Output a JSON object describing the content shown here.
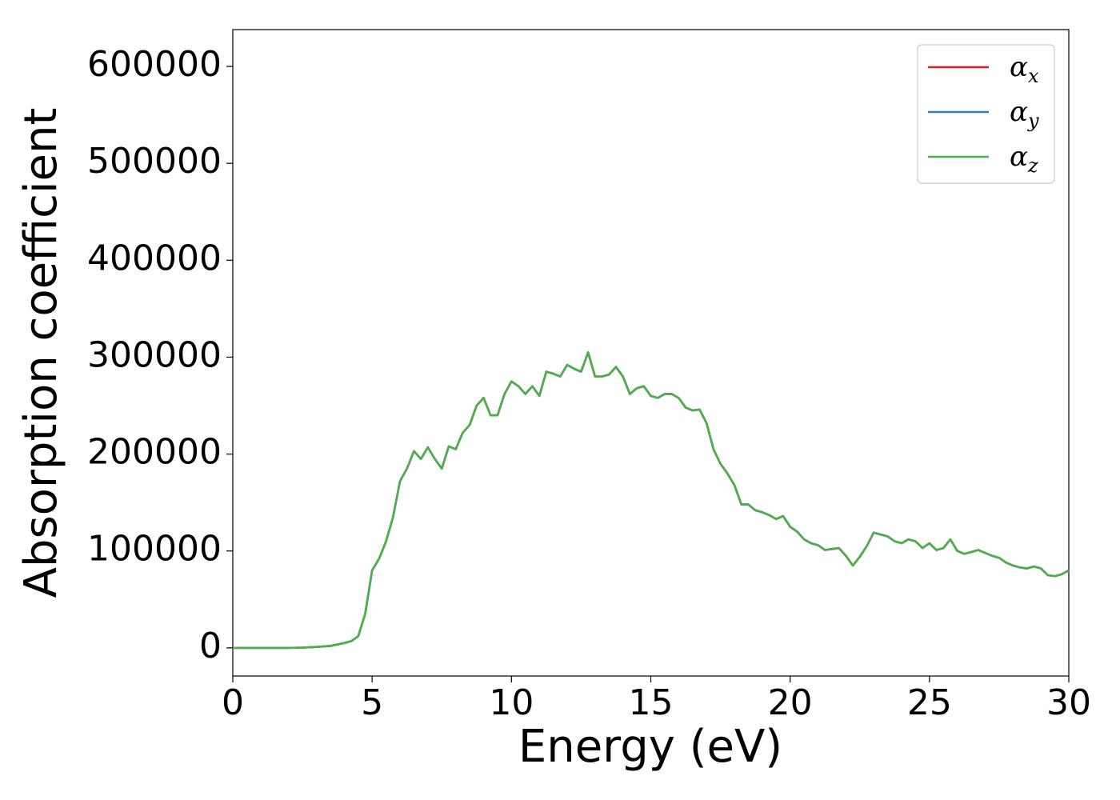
{
  "chart_data": {
    "type": "line",
    "xlabel": "Energy (eV)",
    "ylabel": "Absorption coefficient",
    "x": [
      0,
      0.5,
      1,
      1.5,
      2,
      2.5,
      3,
      3.5,
      4,
      4.25,
      4.5,
      4.75,
      5,
      5.25,
      5.5,
      5.75,
      6,
      6.25,
      6.5,
      6.75,
      7,
      7.25,
      7.5,
      7.75,
      8,
      8.25,
      8.5,
      8.75,
      9,
      9.25,
      9.5,
      9.75,
      10,
      10.25,
      10.5,
      10.75,
      11,
      11.25,
      11.5,
      11.75,
      12,
      12.25,
      12.5,
      12.75,
      13,
      13.25,
      13.5,
      13.75,
      14,
      14.25,
      14.5,
      14.75,
      15,
      15.25,
      15.5,
      15.75,
      16,
      16.25,
      16.5,
      16.75,
      17,
      17.25,
      17.5,
      17.75,
      18,
      18.25,
      18.5,
      18.75,
      19,
      19.25,
      19.5,
      19.75,
      20,
      20.25,
      20.5,
      20.75,
      21,
      21.25,
      21.5,
      21.75,
      22,
      22.25,
      22.5,
      22.75,
      23,
      23.25,
      23.5,
      23.75,
      24,
      24.25,
      24.5,
      24.75,
      25,
      25.25,
      25.5,
      25.75,
      26,
      26.25,
      26.5,
      26.75,
      27,
      27.25,
      27.5,
      27.75,
      28,
      28.25,
      28.5,
      28.75,
      29,
      29.25,
      29.5,
      29.75,
      30
    ],
    "series": [
      {
        "name": "αx",
        "color": "#e41a1c",
        "values": [
          0,
          0,
          0,
          0,
          0,
          300,
          1000,
          2000,
          5000,
          7000,
          12000,
          35000,
          80000,
          92000,
          110000,
          135000,
          172000,
          185000,
          203000,
          195000,
          207000,
          195000,
          185000,
          208000,
          205000,
          222000,
          230000,
          250000,
          258000,
          240000,
          240000,
          262000,
          275000,
          270000,
          262000,
          270000,
          260000,
          285000,
          283000,
          280000,
          292000,
          288000,
          285000,
          305000,
          280000,
          280000,
          282000,
          290000,
          280000,
          262000,
          268000,
          270000,
          260000,
          258000,
          262000,
          262000,
          258000,
          248000,
          245000,
          246000,
          232000,
          205000,
          190000,
          180000,
          168000,
          148000,
          148000,
          142000,
          140000,
          137000,
          133000,
          136000,
          125000,
          120000,
          112000,
          108000,
          106000,
          101000,
          102000,
          103000,
          95000,
          85000,
          94000,
          105000,
          119000,
          117000,
          115000,
          110000,
          108000,
          112000,
          110000,
          103000,
          108000,
          101000,
          103000,
          112000,
          100000,
          97000,
          99000,
          101000,
          98000,
          95000,
          93000,
          88000,
          85000,
          83000,
          82000,
          84000,
          82000,
          75000,
          74000,
          76000,
          80000
        ]
      },
      {
        "name": "αy",
        "color": "#377eb8",
        "values": [
          0,
          0,
          0,
          0,
          0,
          300,
          1000,
          2000,
          5000,
          7000,
          12000,
          35000,
          80000,
          92000,
          110000,
          135000,
          172000,
          185000,
          203000,
          195000,
          207000,
          195000,
          185000,
          208000,
          205000,
          222000,
          230000,
          250000,
          258000,
          240000,
          240000,
          262000,
          275000,
          270000,
          262000,
          270000,
          260000,
          285000,
          283000,
          280000,
          292000,
          288000,
          285000,
          305000,
          280000,
          280000,
          282000,
          290000,
          280000,
          262000,
          268000,
          270000,
          260000,
          258000,
          262000,
          262000,
          258000,
          248000,
          245000,
          246000,
          232000,
          205000,
          190000,
          180000,
          168000,
          148000,
          148000,
          142000,
          140000,
          137000,
          133000,
          136000,
          125000,
          120000,
          112000,
          108000,
          106000,
          101000,
          102000,
          103000,
          95000,
          85000,
          94000,
          105000,
          119000,
          117000,
          115000,
          110000,
          108000,
          112000,
          110000,
          103000,
          108000,
          101000,
          103000,
          112000,
          100000,
          97000,
          99000,
          101000,
          98000,
          95000,
          93000,
          88000,
          85000,
          83000,
          82000,
          84000,
          82000,
          75000,
          74000,
          76000,
          80000
        ]
      },
      {
        "name": "αz",
        "color": "#4daf4a",
        "values": [
          0,
          0,
          0,
          0,
          0,
          300,
          1000,
          2000,
          5000,
          7000,
          12000,
          35000,
          80000,
          92000,
          110000,
          135000,
          172000,
          185000,
          203000,
          195000,
          207000,
          195000,
          185000,
          208000,
          205000,
          222000,
          230000,
          250000,
          258000,
          240000,
          240000,
          262000,
          275000,
          270000,
          262000,
          270000,
          260000,
          285000,
          283000,
          280000,
          292000,
          288000,
          285000,
          305000,
          280000,
          280000,
          282000,
          290000,
          280000,
          262000,
          268000,
          270000,
          260000,
          258000,
          262000,
          262000,
          258000,
          248000,
          245000,
          246000,
          232000,
          205000,
          190000,
          180000,
          168000,
          148000,
          148000,
          142000,
          140000,
          137000,
          133000,
          136000,
          125000,
          120000,
          112000,
          108000,
          106000,
          101000,
          102000,
          103000,
          95000,
          85000,
          94000,
          105000,
          119000,
          117000,
          115000,
          110000,
          108000,
          112000,
          110000,
          103000,
          108000,
          101000,
          103000,
          112000,
          100000,
          97000,
          99000,
          101000,
          98000,
          95000,
          93000,
          88000,
          85000,
          83000,
          82000,
          84000,
          82000,
          75000,
          74000,
          76000,
          80000
        ]
      }
    ],
    "xlim": [
      0,
      30
    ],
    "xticks": [
      0,
      5,
      10,
      15,
      20,
      25,
      30
    ],
    "ylim": [
      -29000,
      638000
    ],
    "yticks": [
      0,
      100000,
      200000,
      300000,
      400000,
      500000,
      600000
    ],
    "legend": "upper right"
  }
}
